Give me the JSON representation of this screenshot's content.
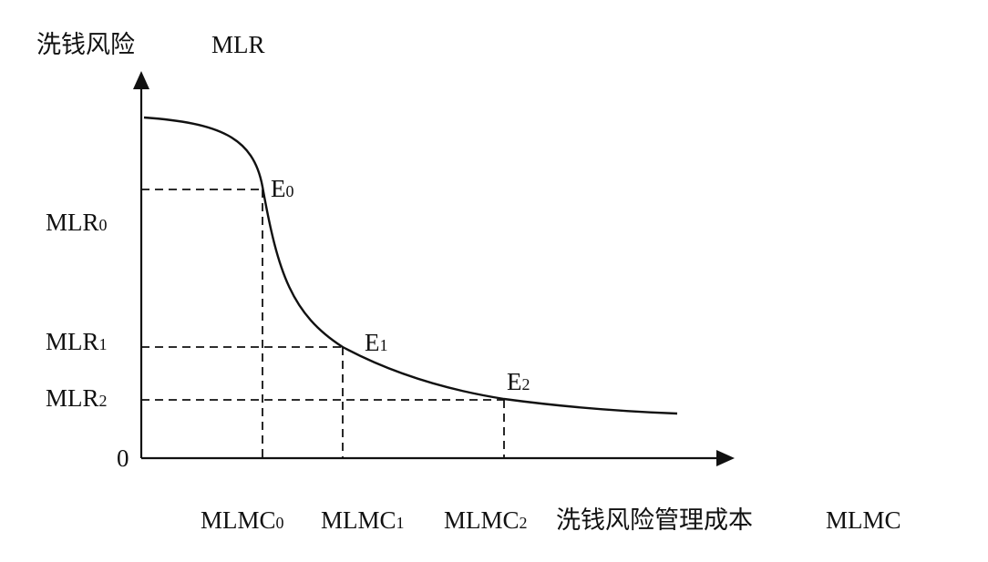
{
  "chart_data": {
    "type": "line",
    "y_axis_title": "洗钱风险",
    "y_axis_symbol": "MLR",
    "x_axis_title": "洗钱风险管理成本",
    "x_axis_symbol": "MLMC",
    "origin_label": "0",
    "grid": false,
    "legend": "none",
    "points": [
      {
        "name": "E",
        "sub": "0",
        "x_label": "MLMC",
        "x_sub": "0",
        "y_label": "MLR",
        "y_sub": "0"
      },
      {
        "name": "E",
        "sub": "1",
        "x_label": "MLMC",
        "x_sub": "1",
        "y_label": "MLR",
        "y_sub": "1"
      },
      {
        "name": "E",
        "sub": "2",
        "x_label": "MLMC",
        "x_sub": "2",
        "y_label": "MLR",
        "y_sub": "2"
      }
    ]
  }
}
